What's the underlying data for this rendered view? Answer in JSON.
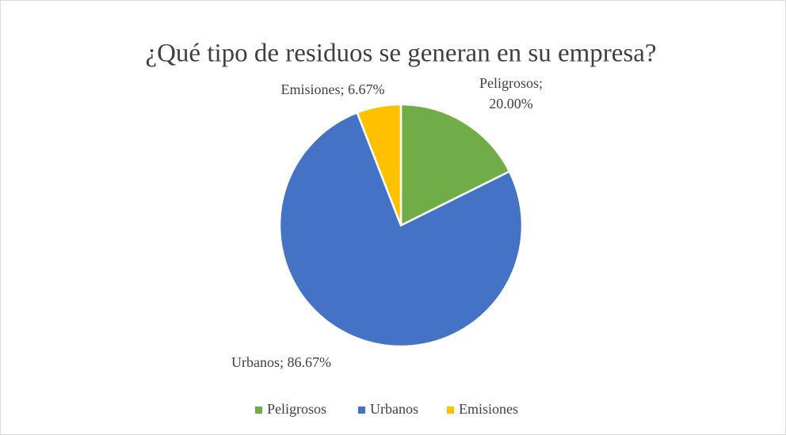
{
  "chart_data": {
    "type": "pie",
    "title": "¿Qué tipo de residuos se generan en su empresa?",
    "categories": [
      "Peligrosos",
      "Urbanos",
      "Emisiones"
    ],
    "values": [
      20,
      86.67,
      6.67
    ],
    "value_labels": [
      "Peligrosos; 20.00%",
      "Urbanos; 86.67%",
      "Emisiones; 6.67%"
    ],
    "colors": [
      "#70ad47",
      "#4472c4",
      "#ffc000"
    ],
    "legend": "bottom"
  }
}
